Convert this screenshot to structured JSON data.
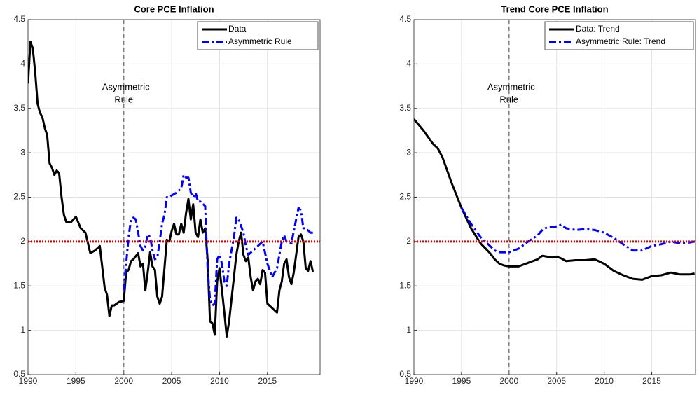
{
  "chart_data": [
    {
      "type": "line",
      "title": "Core PCE Inflation",
      "annotation": [
        "Asymmetric",
        "Rule"
      ],
      "vline": 2000,
      "hline": 2,
      "hline_color": "#e00000",
      "vline_color": "#808080",
      "legend": "upper right",
      "grid": true,
      "xlim": [
        1990,
        2020.5
      ],
      "xticks": [
        1990,
        1995,
        2000,
        2005,
        2010,
        2015
      ],
      "ylim": [
        0.5,
        4.5
      ],
      "yticks": [
        0.5,
        1,
        1.5,
        2,
        2.5,
        3,
        3.5,
        4,
        4.5
      ],
      "series": [
        {
          "name": "Data",
          "color": "#000000",
          "dash": "solid",
          "x": [
            1990,
            1990.25,
            1990.5,
            1990.75,
            1991,
            1991.25,
            1991.5,
            1991.75,
            1992,
            1992.25,
            1992.5,
            1992.75,
            1993,
            1993.25,
            1993.5,
            1993.75,
            1994,
            1994.5,
            1995,
            1995.5,
            1996,
            1996.5,
            1997,
            1997.5,
            1998,
            1998.25,
            1998.5,
            1998.75,
            1999,
            1999.5,
            2000,
            2000.25,
            2000.5,
            2000.75,
            2001,
            2001.5,
            2001.75,
            2002,
            2002.25,
            2002.5,
            2002.75,
            2003,
            2003.25,
            2003.5,
            2003.75,
            2004,
            2004.5,
            2004.75,
            2005,
            2005.25,
            2005.5,
            2005.75,
            2006,
            2006.25,
            2006.5,
            2006.75,
            2007,
            2007.25,
            2007.5,
            2007.75,
            2008,
            2008.25,
            2008.5,
            2008.75,
            2009,
            2009.25,
            2009.5,
            2009.75,
            2010,
            2010.25,
            2010.5,
            2010.75,
            2011,
            2011.5,
            2011.75,
            2012,
            2012.25,
            2012.5,
            2012.75,
            2013,
            2013.25,
            2013.5,
            2013.75,
            2014,
            2014.25,
            2014.5,
            2014.75,
            2015,
            2015.5,
            2016,
            2016.25,
            2016.5,
            2016.75,
            2017,
            2017.25,
            2017.5,
            2017.75,
            2018,
            2018.25,
            2018.5,
            2018.75,
            2019,
            2019.25,
            2019.5,
            2019.75
          ],
          "values": [
            3.78,
            4.25,
            4.18,
            3.9,
            3.55,
            3.45,
            3.4,
            3.28,
            3.2,
            2.88,
            2.83,
            2.75,
            2.8,
            2.77,
            2.5,
            2.3,
            2.22,
            2.22,
            2.28,
            2.15,
            2.1,
            1.87,
            1.9,
            1.95,
            1.48,
            1.4,
            1.16,
            1.28,
            1.28,
            1.32,
            1.33,
            1.65,
            1.68,
            1.78,
            1.8,
            1.87,
            1.72,
            1.75,
            1.45,
            1.65,
            1.88,
            1.72,
            1.68,
            1.38,
            1.3,
            1.38,
            2.02,
            2.0,
            2.12,
            2.2,
            2.08,
            2.08,
            2.2,
            2.1,
            2.32,
            2.48,
            2.25,
            2.42,
            2.1,
            2.05,
            2.25,
            2.1,
            2.15,
            1.8,
            1.1,
            1.08,
            0.95,
            1.55,
            1.7,
            1.45,
            1.2,
            0.93,
            1.1,
            1.6,
            1.85,
            2.0,
            2.1,
            1.85,
            1.78,
            1.82,
            1.6,
            1.45,
            1.55,
            1.58,
            1.52,
            1.68,
            1.65,
            1.3,
            1.25,
            1.2,
            1.45,
            1.55,
            1.75,
            1.8,
            1.6,
            1.52,
            1.65,
            1.85,
            2.05,
            2.08,
            2.0,
            1.7,
            1.67,
            1.78,
            1.66
          ]
        },
        {
          "name": "Asymmetric Rule",
          "color": "#0000ff",
          "dash": "dashdot",
          "x": [
            2000,
            2000.25,
            2000.5,
            2000.75,
            2001,
            2001.25,
            2001.5,
            2001.75,
            2002,
            2002.25,
            2002.5,
            2002.75,
            2003,
            2003.25,
            2003.5,
            2003.75,
            2004,
            2004.25,
            2004.5,
            2004.75,
            2005,
            2005.5,
            2006,
            2006.25,
            2006.5,
            2006.75,
            2007,
            2007.25,
            2007.5,
            2007.75,
            2008,
            2008.5,
            2008.75,
            2009,
            2009.25,
            2009.5,
            2009.75,
            2010,
            2010.25,
            2010.5,
            2010.75,
            2011,
            2011.5,
            2011.75,
            2012,
            2012.5,
            2012.75,
            2013,
            2013.5,
            2014,
            2014.5,
            2015,
            2015.5,
            2016,
            2016.5,
            2016.75,
            2017,
            2017.5,
            2018,
            2018.25,
            2018.5,
            2018.75,
            2019,
            2019.5,
            2019.75
          ],
          "values": [
            1.45,
            1.75,
            2.05,
            2.25,
            2.27,
            2.25,
            2.1,
            1.95,
            1.9,
            1.95,
            2.08,
            2.05,
            1.9,
            1.8,
            1.82,
            2.0,
            2.2,
            2.3,
            2.5,
            2.5,
            2.52,
            2.55,
            2.6,
            2.75,
            2.72,
            2.72,
            2.55,
            2.5,
            2.55,
            2.45,
            2.45,
            2.4,
            1.7,
            1.35,
            1.28,
            1.3,
            1.8,
            1.85,
            1.75,
            1.55,
            1.5,
            1.75,
            2.05,
            2.27,
            2.25,
            2.1,
            1.95,
            1.85,
            1.9,
            1.95,
            2.0,
            1.75,
            1.6,
            1.7,
            2.0,
            2.07,
            2.0,
            1.98,
            2.25,
            2.38,
            2.35,
            2.15,
            2.15,
            2.1,
            2.1
          ]
        }
      ]
    },
    {
      "type": "line",
      "title": "Trend Core PCE Inflation",
      "annotation": [
        "Asymmetric",
        "Rule"
      ],
      "vline": 2000,
      "hline": 2,
      "hline_color": "#e00000",
      "vline_color": "#808080",
      "legend": "upper right",
      "grid": true,
      "xlim": [
        1990,
        2019.6
      ],
      "xticks": [
        1990,
        1995,
        2000,
        2005,
        2010,
        2015
      ],
      "ylim": [
        0.5,
        4.5
      ],
      "yticks": [
        0.5,
        1,
        1.5,
        2,
        2.5,
        3,
        3.5,
        4,
        4.5
      ],
      "series": [
        {
          "name": "Data: Trend",
          "color": "#000000",
          "dash": "solid",
          "x": [
            1990,
            1991,
            1992,
            1992.5,
            1993,
            1994,
            1995,
            1996,
            1997,
            1998,
            1998.5,
            1999,
            1999.5,
            2000,
            2001,
            2002,
            2003,
            2003.5,
            2004,
            2004.5,
            2005,
            2005.5,
            2006,
            2007,
            2008,
            2009,
            2010,
            2011,
            2012,
            2013,
            2014,
            2014.5,
            2015,
            2016,
            2017,
            2018,
            2019,
            2019.5
          ],
          "values": [
            3.38,
            3.25,
            3.1,
            3.05,
            2.95,
            2.65,
            2.38,
            2.15,
            1.98,
            1.87,
            1.8,
            1.75,
            1.73,
            1.72,
            1.72,
            1.76,
            1.8,
            1.84,
            1.83,
            1.82,
            1.83,
            1.81,
            1.78,
            1.79,
            1.79,
            1.8,
            1.75,
            1.67,
            1.62,
            1.58,
            1.57,
            1.59,
            1.61,
            1.62,
            1.65,
            1.63,
            1.63,
            1.64
          ]
        },
        {
          "name": "Asymmetric Rule: Trend",
          "color": "#0000ff",
          "dash": "dashdot",
          "x": [
            1995,
            1996,
            1997,
            1998,
            1998.5,
            1999,
            2000,
            2001,
            2002,
            2003,
            2003.5,
            2004,
            2005,
            2005.5,
            2006,
            2007,
            2008,
            2009,
            2010,
            2011,
            2012,
            2013,
            2014,
            2015,
            2016,
            2017,
            2018,
            2019,
            2019.5
          ],
          "values": [
            2.38,
            2.2,
            2.05,
            1.95,
            1.9,
            1.88,
            1.88,
            1.92,
            2.0,
            2.07,
            2.13,
            2.16,
            2.17,
            2.19,
            2.15,
            2.13,
            2.14,
            2.13,
            2.1,
            2.04,
            1.97,
            1.9,
            1.9,
            1.95,
            1.97,
            2.0,
            1.98,
            1.99,
            2.0
          ]
        }
      ]
    }
  ]
}
